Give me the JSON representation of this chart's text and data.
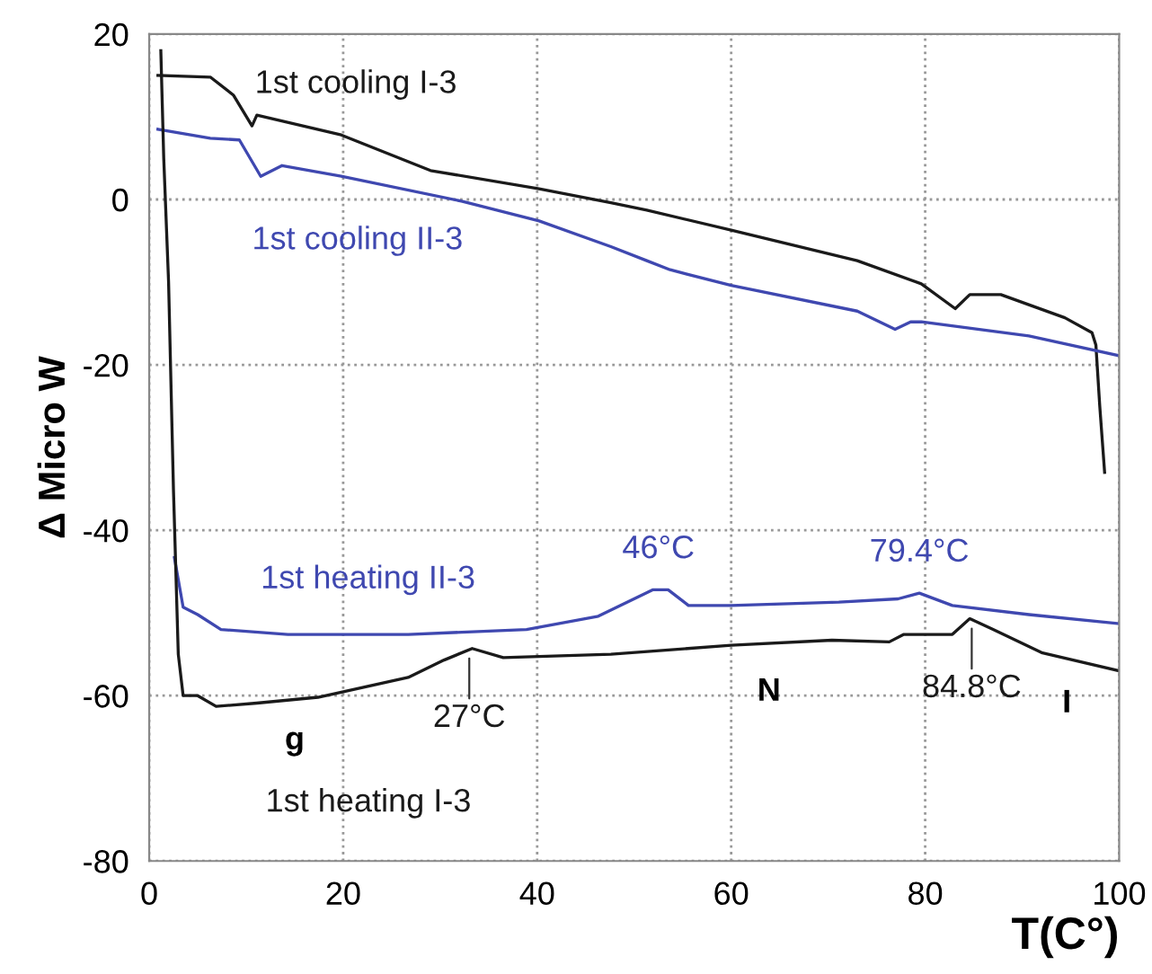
{
  "chart_data": {
    "type": "line",
    "xlabel": "T(C°)",
    "ylabel": "Δ Micro W",
    "xlim": [
      0,
      100
    ],
    "ylim": [
      -80,
      20
    ],
    "xticks": [
      0,
      20,
      40,
      60,
      80,
      100
    ],
    "yticks": [
      -80,
      -60,
      -40,
      -20,
      0,
      20
    ],
    "grid": true,
    "legend": false,
    "marker": "none",
    "line_style": "solid",
    "series": [
      {
        "name": "1st cooling I-3",
        "color": "#1a1a1a",
        "x": [
          0.9,
          6.3,
          8.7,
          10.6,
          11.1,
          19.8,
          29,
          40.2,
          47.6,
          51.3,
          60,
          73,
          79.6,
          83.1,
          84.6,
          87.8,
          94.4,
          97.2,
          97.6,
          98,
          98.5
        ],
        "values": [
          15,
          14.8,
          12.6,
          8.9,
          10.2,
          7.8,
          3.5,
          1.3,
          -0.4,
          -1.3,
          -3.7,
          -7.4,
          -10.2,
          -13.2,
          -11.5,
          -11.5,
          -14.3,
          -16.1,
          -17.6,
          -25,
          -33
        ]
      },
      {
        "name": "1st cooling II-3",
        "color": "#3f48b0",
        "x": [
          0.9,
          6.3,
          9.3,
          11.5,
          13.7,
          19.8,
          32.2,
          40.2,
          47.6,
          51.3,
          53.7,
          60,
          73,
          76.9,
          78.5,
          79.6,
          90.7,
          100
        ],
        "values": [
          8.5,
          7.4,
          7.2,
          2.8,
          4.1,
          2.8,
          -0.2,
          -2.6,
          -5.7,
          -7.4,
          -8.5,
          -10.4,
          -13.5,
          -15.7,
          -14.8,
          -14.8,
          -16.5,
          -18.9
        ]
      },
      {
        "name": "1st heating II-3",
        "color": "#3f48b0",
        "x": [
          2.6,
          3.5,
          5,
          7.4,
          14.3,
          26.7,
          38.9,
          46.3,
          51.9,
          53.5,
          55.6,
          60,
          71.1,
          77.2,
          79.4,
          82.8,
          90.7,
          100
        ],
        "values": [
          -43.3,
          -49.3,
          -50.2,
          -52,
          -52.6,
          -52.6,
          -52,
          -50.4,
          -47.2,
          -47.2,
          -49.1,
          -49.1,
          -48.7,
          -48.3,
          -47.6,
          -49.1,
          -50.2,
          -51.3
        ]
      },
      {
        "name": "1st heating I-3",
        "color": "#1a1a1a",
        "x": [
          1.2,
          1.5,
          2,
          2.5,
          3,
          3.5,
          5,
          6.9,
          11.1,
          17.4,
          26.7,
          30.4,
          33.3,
          36.5,
          47.6,
          60,
          70.4,
          76.3,
          77.8,
          82.8,
          84.6,
          87,
          92,
          100
        ],
        "values": [
          18,
          5,
          -10,
          -35,
          -55,
          -60,
          -60,
          -61.3,
          -60.9,
          -60.2,
          -57.8,
          -55.7,
          -54.3,
          -55.4,
          -55,
          -53.9,
          -53.3,
          -53.5,
          -52.6,
          -52.6,
          -50.7,
          -52,
          -54.8,
          -57
        ]
      }
    ],
    "annotations": [
      {
        "text": "46°C",
        "x": 52.5,
        "y": -47.2
      },
      {
        "text": "79.4°C",
        "x": 79.4,
        "y": -47.6
      },
      {
        "text": "27°C",
        "x": 33,
        "y": -54.3
      },
      {
        "text": "84.8°C",
        "x": 84.8,
        "y": -50.7
      },
      "g",
      "N",
      "I"
    ]
  }
}
